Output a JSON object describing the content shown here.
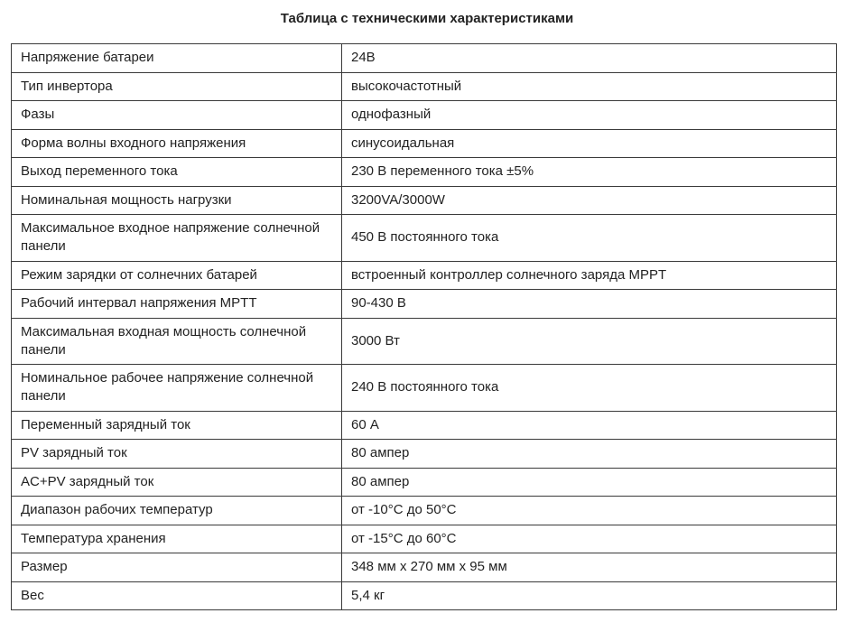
{
  "title": "Таблица с техническими характеристиками",
  "rows": [
    {
      "key": "Напряжение батареи",
      "value": "24В"
    },
    {
      "key": "Тип инвертора",
      "value": "высокочастотный"
    },
    {
      "key": "Фазы",
      "value": "однофазный"
    },
    {
      "key": "Форма волны входного напряжения",
      "value": "синусоидальная"
    },
    {
      "key": "Выход переменного тока",
      "value": "230 В переменного тока ±5%"
    },
    {
      "key": "Номинальная мощность нагрузки",
      "value": "3200VA/3000W"
    },
    {
      "key": "Максимальное входное напряжение солнечной панели",
      "value": "450 В постоянного тока"
    },
    {
      "key": "Режим зарядки от солнечних батарей",
      "value": "встроенный контроллер солнечного заряда MPPT"
    },
    {
      "key": "Рабочий интервал напряжения MPTT",
      "value": "90-430 В"
    },
    {
      "key": "Максимальная входная мощность солнечной панели",
      "value": "3000 Вт"
    },
    {
      "key": "Номинальное рабочее напряжение солнечной панели",
      "value": "240 В постоянного тока"
    },
    {
      "key": "Переменный зарядный ток",
      "value": "60 А"
    },
    {
      "key": "PV зарядный ток",
      "value": "80 ампер"
    },
    {
      "key": "AC+PV зарядный ток",
      "value": "80 ампер"
    },
    {
      "key": "Диапазон рабочих температур",
      "value": "от -10°C до 50°C"
    },
    {
      "key": "Температура хранения",
      "value": "от -15°C до 60°C"
    },
    {
      "key": "Размер",
      "value": "348 мм x 270 мм x 95 мм"
    },
    {
      "key": "Вес",
      "value": "5,4 кг"
    }
  ]
}
